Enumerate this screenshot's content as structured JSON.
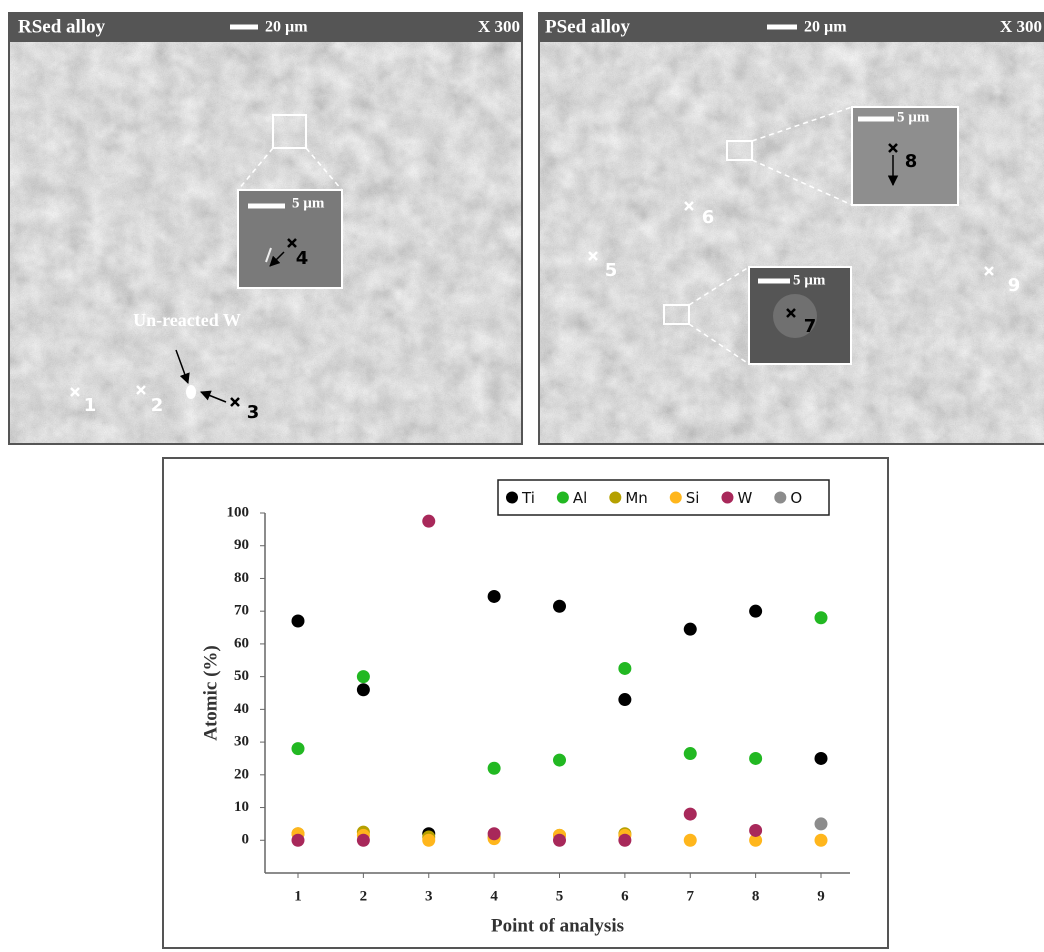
{
  "micrographs": [
    {
      "title": "RSed alloy",
      "scale": "20 µm",
      "magnification": "X 300",
      "inset_scales": [
        "5 µm"
      ],
      "points": [
        "1",
        "2",
        "3",
        "4"
      ],
      "annotation": "Un-reacted W"
    },
    {
      "title": "PSed alloy",
      "scale": "20 µm",
      "magnification": "X 300",
      "inset_scales": [
        "5 µm",
        "5 µm"
      ],
      "points": [
        "5",
        "6",
        "7",
        "8",
        "9"
      ]
    }
  ],
  "chart_data": {
    "type": "scatter",
    "x_label": "Point of analysis",
    "y_label": "Atomic (%)",
    "categories": [
      "1",
      "2",
      "3",
      "4",
      "5",
      "6",
      "7",
      "8",
      "9"
    ],
    "series": [
      {
        "name": "Ti",
        "color": "#000000",
        "values": [
          67,
          46,
          2,
          74.5,
          71.5,
          43,
          64.5,
          70,
          25
        ]
      },
      {
        "name": "Al",
        "color": "#22b822",
        "values": [
          28,
          50,
          null,
          22,
          24.5,
          52.5,
          26.5,
          25,
          68
        ]
      },
      {
        "name": "Mn",
        "color": "#b5a000",
        "values": [
          2,
          2.5,
          1,
          1,
          1.5,
          2,
          null,
          null,
          null
        ]
      },
      {
        "name": "Si",
        "color": "#ffb61c",
        "values": [
          2,
          1.5,
          0,
          0.5,
          1.5,
          1.5,
          0,
          0,
          0
        ]
      },
      {
        "name": "W",
        "color": "#a8285a",
        "values": [
          0,
          0,
          97.5,
          2,
          0,
          0,
          8,
          3,
          null
        ]
      },
      {
        "name": "O",
        "color": "#8c8c8c",
        "values": [
          null,
          null,
          null,
          null,
          null,
          null,
          null,
          null,
          5
        ]
      }
    ],
    "ylim": [
      -10,
      100
    ],
    "yticks": [
      0,
      10,
      20,
      30,
      40,
      50,
      60,
      70,
      80,
      90,
      100
    ],
    "legend_position": "top-right"
  }
}
